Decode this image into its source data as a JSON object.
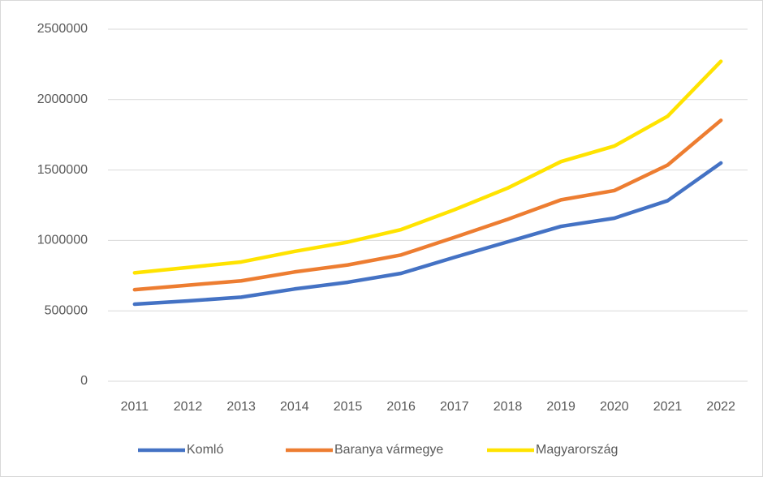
{
  "chart_data": {
    "type": "line",
    "categories": [
      "2011",
      "2012",
      "2013",
      "2014",
      "2015",
      "2016",
      "2017",
      "2018",
      "2019",
      "2020",
      "2021",
      "2022"
    ],
    "series": [
      {
        "name": "Komló",
        "color": "#4472c4",
        "values": [
          547000,
          570000,
          597000,
          655000,
          703000,
          766000,
          880000,
          990000,
          1100000,
          1158000,
          1282000,
          1550000
        ]
      },
      {
        "name": "Baranya vármegye",
        "color": "#ed7d31",
        "values": [
          650000,
          682000,
          713000,
          776000,
          826000,
          897000,
          1022000,
          1150000,
          1288000,
          1354000,
          1535000,
          1853000
        ]
      },
      {
        "name": "Magyarország",
        "color": "#ffe300",
        "values": [
          770000,
          808000,
          847000,
          922000,
          988000,
          1077000,
          1218000,
          1372000,
          1560000,
          1670000,
          1882000,
          2272000
        ]
      }
    ],
    "ylim": [
      0,
      2500000
    ],
    "yticks": [
      0,
      500000,
      1000000,
      1500000,
      2000000,
      2500000
    ],
    "grid": true,
    "legend": "bottom"
  }
}
